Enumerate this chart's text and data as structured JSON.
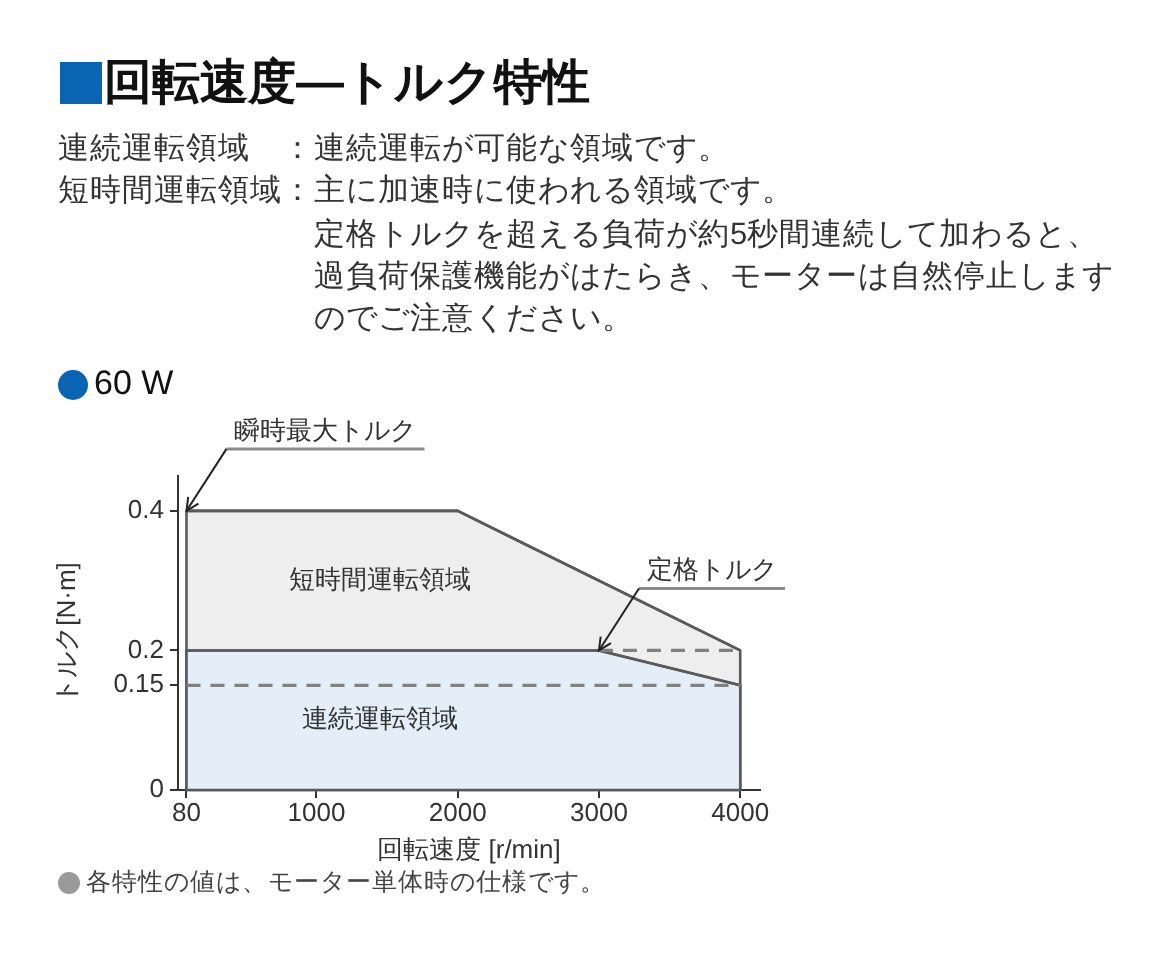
{
  "chart_data": {
    "type": "area",
    "title": "回転速度―トルク特性",
    "subtitle": "60 W",
    "xlabel": "回転速度 [r/min]",
    "ylabel": "トルク[N·m]",
    "annotations": [
      "連続運転領域　：連続運転が可能な領域です。",
      "短時間運転領域：主に加速時に使われる領域です。",
      "定格トルクを超える負荷が約5秒間連続して加わると、過負荷保護機能がはたらき、モーターは自然停止しますのでご注意ください。",
      {
        "text": "瞬時最大トルク",
        "x": 80,
        "y": 0.4
      },
      {
        "text": "定格トルク",
        "x": 3000,
        "y": 0.2
      },
      "各特性の値は、モーター単体時の仕様です。"
    ],
    "series": [
      {
        "name": "短時間運転領域",
        "color": "#eeeeee",
        "x": [
          80,
          2000,
          4000
        ],
        "values": [
          0.4,
          0.4,
          0.2
        ]
      },
      {
        "name": "連続運転領域",
        "color": "#e3eef8",
        "x": [
          80,
          3000,
          4000
        ],
        "values": [
          0.2,
          0.2,
          0.15
        ]
      },
      {
        "type": "line",
        "color": "#808080",
        "line_style": "dashed",
        "x": [
          80,
          4000
        ],
        "values": [
          0.15,
          0.15
        ]
      },
      {
        "type": "line",
        "color": "#808080",
        "line_style": "dashed",
        "x": [
          3000,
          4000
        ],
        "values": [
          0.2,
          0.2
        ]
      }
    ],
    "xlim": [
      20,
      4140
    ],
    "xticks": [
      80,
      1000,
      2000,
      3000,
      4000
    ],
    "ylim": [
      0,
      0.45
    ],
    "yticks": [
      0,
      0.15,
      0.2,
      0.4
    ],
    "grid": false,
    "legend": false
  }
}
